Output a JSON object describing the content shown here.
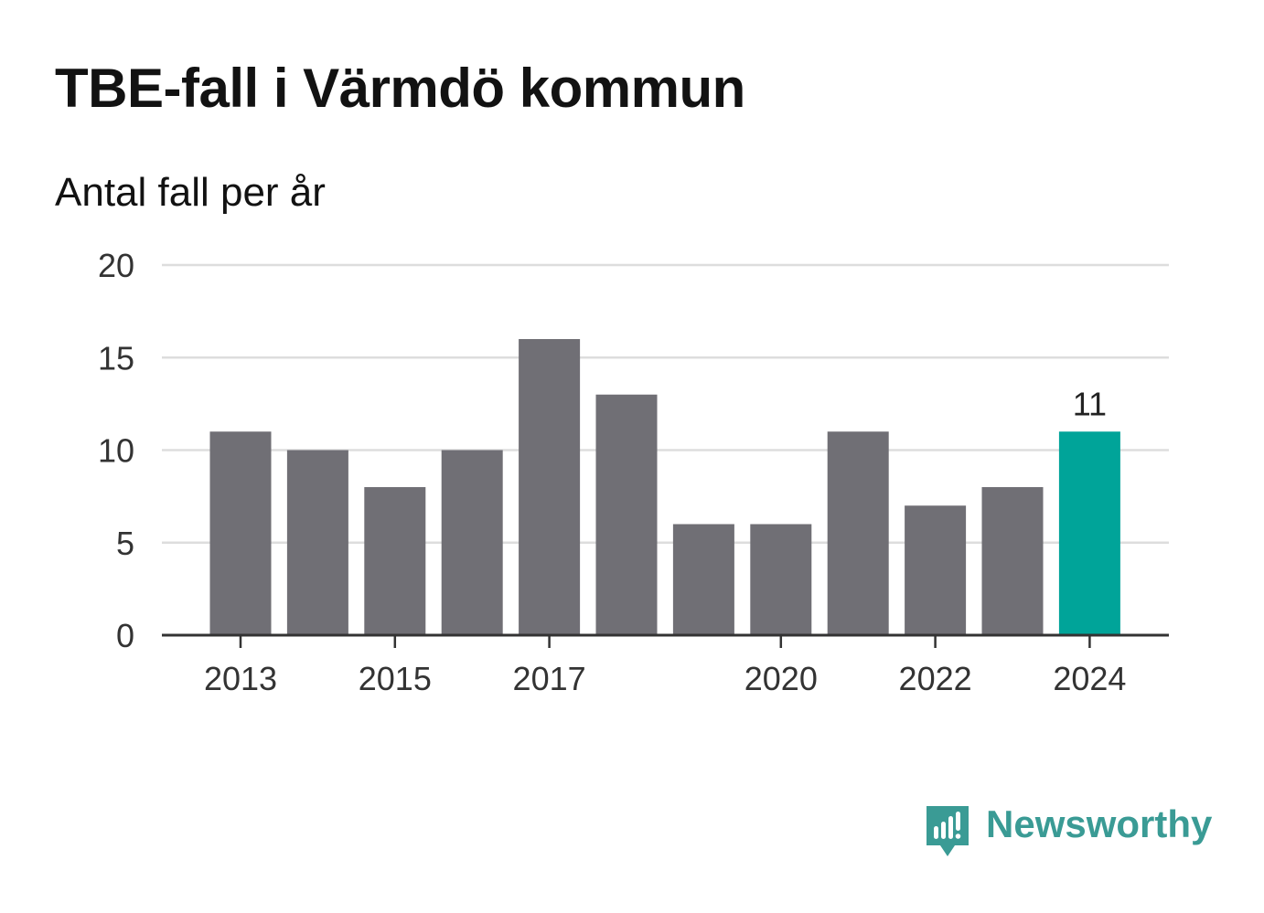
{
  "title": "TBE-fall i Värmdö kommun",
  "subtitle": "Antal fall per år",
  "colors": {
    "bar": "#706f75",
    "highlight": "#00a499",
    "grid": "#dddddd",
    "axis": "#333333",
    "text": "#333333",
    "logo": "#3a9b95"
  },
  "logo": {
    "icon": "newsworthy-logo-icon",
    "text": "Newsworthy"
  },
  "chart_data": {
    "type": "bar",
    "title": "TBE-fall i Värmdö kommun",
    "subtitle": "Antal fall per år",
    "xlabel": "",
    "ylabel": "",
    "categories": [
      "2013",
      "2014",
      "2015",
      "2016",
      "2017",
      "2018",
      "2019",
      "2020",
      "2021",
      "2022",
      "2023",
      "2024"
    ],
    "values": [
      11,
      10,
      8,
      10,
      16,
      13,
      6,
      6,
      11,
      7,
      8,
      11
    ],
    "ylim": [
      0,
      20
    ],
    "yticks": [
      0,
      5,
      10,
      15,
      20
    ],
    "xtick_labels": [
      "2013",
      "2015",
      "2017",
      "2020",
      "2022",
      "2024"
    ],
    "highlight_category": "2024",
    "data_labels": [
      {
        "category": "2024",
        "text": "11"
      }
    ],
    "grid": true,
    "legend": "none"
  }
}
